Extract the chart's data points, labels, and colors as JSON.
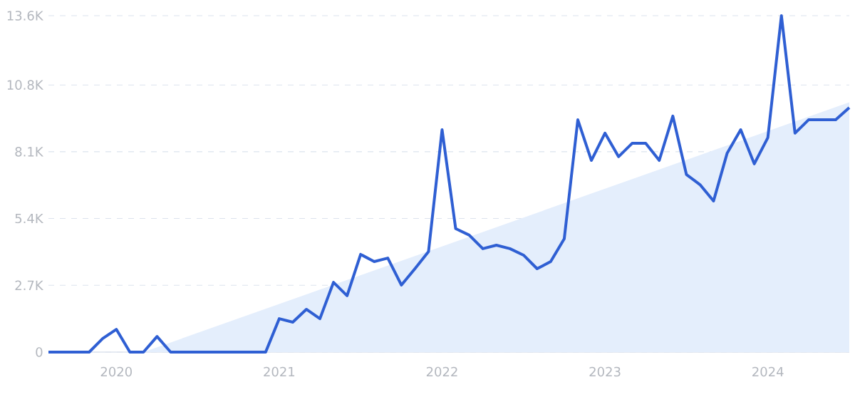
{
  "chart_data": {
    "type": "line",
    "x": [
      "2019-08",
      "2019-09",
      "2019-10",
      "2019-11",
      "2019-12",
      "2020-01",
      "2020-02",
      "2020-03",
      "2020-04",
      "2020-05",
      "2020-06",
      "2020-07",
      "2020-08",
      "2020-09",
      "2020-10",
      "2020-11",
      "2020-12",
      "2021-01",
      "2021-02",
      "2021-03",
      "2021-04",
      "2021-05",
      "2021-06",
      "2021-07",
      "2021-08",
      "2021-09",
      "2021-10",
      "2021-11",
      "2021-12",
      "2022-01",
      "2022-02",
      "2022-03",
      "2022-04",
      "2022-05",
      "2022-06",
      "2022-07",
      "2022-08",
      "2022-09",
      "2022-10",
      "2022-11",
      "2022-12",
      "2023-01",
      "2023-02",
      "2023-03",
      "2023-04",
      "2023-05",
      "2023-06",
      "2023-07",
      "2023-08",
      "2023-09",
      "2023-10",
      "2023-11",
      "2023-12",
      "2024-01",
      "2024-02",
      "2024-03",
      "2024-04",
      "2024-05",
      "2024-06",
      "2024-07"
    ],
    "series": [
      {
        "type": "area",
        "color": "#e4eefc",
        "x": [
          "2020-03",
          "2024-07"
        ],
        "values": [
          0,
          10100
        ]
      },
      {
        "color": "#2f5fd3",
        "values": [
          0,
          0,
          0,
          0,
          550,
          920,
          0,
          0,
          630,
          0,
          0,
          0,
          0,
          0,
          0,
          0,
          0,
          1350,
          1210,
          1730,
          1350,
          2820,
          2280,
          3950,
          3660,
          3800,
          2710,
          3370,
          4060,
          8990,
          4990,
          4730,
          4180,
          4320,
          4180,
          3920,
          3370,
          3660,
          4580,
          9390,
          7750,
          8850,
          7900,
          8440,
          8440,
          7750,
          9540,
          7180,
          6770,
          6110,
          8040,
          8990,
          7610,
          8670,
          13600,
          8850,
          9390,
          9390,
          9390,
          9880
        ]
      }
    ],
    "xlim": [
      "2019-08",
      "2024-07"
    ],
    "xticks": [
      "2020",
      "2021",
      "2022",
      "2023",
      "2024"
    ],
    "ylim": [
      0,
      13600
    ],
    "yticks": [
      {
        "value": 0,
        "label": "0"
      },
      {
        "value": 2700,
        "label": "2.7K"
      },
      {
        "value": 5400,
        "label": "5.4K"
      },
      {
        "value": 8100,
        "label": "8.1K"
      },
      {
        "value": 10800,
        "label": "10.8K"
      },
      {
        "value": 13600,
        "label": "13.6K"
      }
    ],
    "grid": "y"
  }
}
